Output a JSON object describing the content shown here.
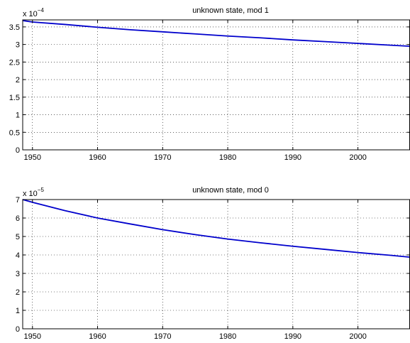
{
  "chart_data": [
    {
      "type": "line",
      "title": "unknown state, mod 1",
      "xlabel": "",
      "ylabel": "",
      "exponent_label": {
        "base": "x 10",
        "power": "−4"
      },
      "xlim": [
        1948.5,
        2008
      ],
      "ylim": [
        0,
        3.7
      ],
      "x_ticks": [
        1950,
        1960,
        1970,
        1980,
        1990,
        2000
      ],
      "y_ticks": [
        0,
        0.5,
        1,
        1.5,
        2,
        2.5,
        3,
        3.5
      ],
      "y_tick_labels": [
        "0",
        "0.5",
        "1",
        "1.5",
        "2",
        "2.5",
        "3",
        "3.5"
      ],
      "grid": true,
      "line_color": "#0000cc",
      "series": [
        {
          "x": [
            1948.5,
            1950,
            1955,
            1960,
            1965,
            1970,
            1975,
            1980,
            1985,
            1990,
            1995,
            2000,
            2005,
            2008
          ],
          "y": [
            3.68,
            3.64,
            3.57,
            3.49,
            3.42,
            3.36,
            3.3,
            3.24,
            3.19,
            3.13,
            3.08,
            3.03,
            2.98,
            2.95
          ]
        }
      ]
    },
    {
      "type": "line",
      "title": "unknown state, mod 0",
      "xlabel": "",
      "ylabel": "",
      "exponent_label": {
        "base": "x 10",
        "power": "−5"
      },
      "xlim": [
        1948.5,
        2008
      ],
      "ylim": [
        0,
        7
      ],
      "x_ticks": [
        1950,
        1960,
        1970,
        1980,
        1990,
        2000
      ],
      "y_ticks": [
        0,
        1,
        2,
        3,
        4,
        5,
        6,
        7
      ],
      "y_tick_labels": [
        "0",
        "1",
        "2",
        "3",
        "4",
        "5",
        "6",
        "7"
      ],
      "grid": true,
      "line_color": "#0000cc",
      "series": [
        {
          "x": [
            1948.5,
            1950,
            1955,
            1960,
            1965,
            1970,
            1975,
            1980,
            1985,
            1990,
            1995,
            2000,
            2005,
            2008
          ],
          "y": [
            7.0,
            6.85,
            6.4,
            6.0,
            5.68,
            5.37,
            5.1,
            4.86,
            4.66,
            4.47,
            4.3,
            4.13,
            3.98,
            3.88
          ]
        }
      ]
    }
  ]
}
